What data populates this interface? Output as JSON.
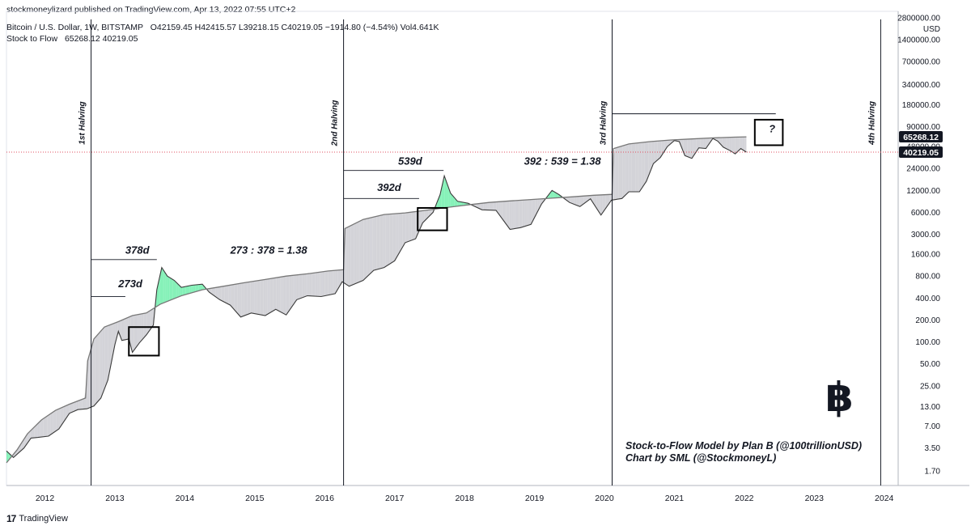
{
  "header": {
    "published": "stockmoneylizard published on TradingView.com, Apr 13, 2022 07:55 UTC+2",
    "symbol": "Bitcoin / U.S. Dollar, 1W, BITSTAMP",
    "ohlc": "O42159.45  H42415.57  L39218.15  C40219.05  −1914.80 (−4.54%)  Vol4.641K",
    "s2f_label": "Stock to Flow",
    "s2f_values": "65268.12  40219.05"
  },
  "footer": {
    "brand": "TradingView",
    "icon": "tradingview-logo-icon"
  },
  "credit": {
    "line1": "Stock-to-Flow Model by Plan B  (@100trillionUSD)",
    "line2": "Chart by SML (@StockmoneyL)"
  },
  "logo": {
    "glyph": "฿",
    "icon": "bitcoin-icon"
  },
  "chart_data": {
    "type": "line",
    "y_scale": "log",
    "y_ticks": [
      "2800000.00",
      "1400000.00",
      "700000.00",
      "340000.00",
      "180000.00",
      "90000.00",
      "48000.00",
      "24000.00",
      "12000.00",
      "6000.00",
      "3000.00",
      "1600.00",
      "800.00",
      "400.00",
      "200.00",
      "100.00",
      "50.00",
      "25.00",
      "13.00",
      "7.00",
      "3.50",
      "1.70"
    ],
    "y_unit": "USD",
    "x_ticks": [
      "2012",
      "2013",
      "2014",
      "2015",
      "2016",
      "2017",
      "2018",
      "2019",
      "2020",
      "2021",
      "2022",
      "2023",
      "2024"
    ],
    "price_label": "40219.05",
    "s2f_label": "65268.12",
    "series": [
      {
        "name": "Bitcoin / U.S. Dollar",
        "color": "#3a3a3a",
        "points": [
          [
            2011.7,
            3.2
          ],
          [
            2011.8,
            2.6
          ],
          [
            2011.95,
            3.5
          ],
          [
            2012.05,
            4.8
          ],
          [
            2012.15,
            4.9
          ],
          [
            2012.3,
            5.1
          ],
          [
            2012.45,
            6.4
          ],
          [
            2012.6,
            10.5
          ],
          [
            2012.72,
            11.8
          ],
          [
            2012.85,
            12.1
          ],
          [
            2012.95,
            13.2
          ],
          [
            2013.05,
            17
          ],
          [
            2013.15,
            30
          ],
          [
            2013.25,
            92
          ],
          [
            2013.3,
            140
          ],
          [
            2013.35,
            105
          ],
          [
            2013.45,
            110
          ],
          [
            2013.5,
            72
          ],
          [
            2013.6,
            97
          ],
          [
            2013.7,
            125
          ],
          [
            2013.8,
            170
          ],
          [
            2013.85,
            520
          ],
          [
            2013.92,
            1050
          ],
          [
            2014.0,
            800
          ],
          [
            2014.1,
            700
          ],
          [
            2014.2,
            560
          ],
          [
            2014.35,
            600
          ],
          [
            2014.5,
            620
          ],
          [
            2014.6,
            480
          ],
          [
            2014.75,
            380
          ],
          [
            2014.9,
            320
          ],
          [
            2015.05,
            220
          ],
          [
            2015.2,
            250
          ],
          [
            2015.4,
            230
          ],
          [
            2015.55,
            280
          ],
          [
            2015.7,
            235
          ],
          [
            2015.85,
            380
          ],
          [
            2016.0,
            430
          ],
          [
            2016.2,
            420
          ],
          [
            2016.4,
            460
          ],
          [
            2016.5,
            670
          ],
          [
            2016.6,
            580
          ],
          [
            2016.8,
            700
          ],
          [
            2016.95,
            960
          ],
          [
            2017.1,
            1050
          ],
          [
            2017.25,
            1300
          ],
          [
            2017.4,
            2300
          ],
          [
            2017.55,
            2600
          ],
          [
            2017.65,
            4300
          ],
          [
            2017.8,
            6000
          ],
          [
            2017.9,
            10500
          ],
          [
            2017.96,
            19000
          ],
          [
            2018.05,
            11000
          ],
          [
            2018.15,
            8500
          ],
          [
            2018.3,
            8000
          ],
          [
            2018.5,
            6500
          ],
          [
            2018.7,
            6400
          ],
          [
            2018.9,
            3500
          ],
          [
            2019.05,
            3700
          ],
          [
            2019.2,
            4100
          ],
          [
            2019.35,
            7800
          ],
          [
            2019.5,
            12000
          ],
          [
            2019.6,
            10500
          ],
          [
            2019.75,
            8200
          ],
          [
            2019.9,
            7200
          ],
          [
            2020.05,
            9200
          ],
          [
            2020.2,
            5500
          ],
          [
            2020.35,
            8800
          ],
          [
            2020.5,
            9300
          ],
          [
            2020.6,
            11500
          ],
          [
            2020.75,
            11500
          ],
          [
            2020.85,
            16000
          ],
          [
            2020.95,
            28000
          ],
          [
            2021.05,
            34000
          ],
          [
            2021.15,
            48000
          ],
          [
            2021.25,
            58000
          ],
          [
            2021.32,
            56000
          ],
          [
            2021.4,
            36000
          ],
          [
            2021.5,
            33000
          ],
          [
            2021.6,
            46000
          ],
          [
            2021.7,
            45000
          ],
          [
            2021.8,
            62000
          ],
          [
            2021.87,
            57000
          ],
          [
            2021.95,
            47000
          ],
          [
            2022.05,
            42000
          ],
          [
            2022.12,
            38000
          ],
          [
            2022.2,
            45000
          ],
          [
            2022.28,
            40219.05
          ]
        ]
      },
      {
        "name": "Stock to Flow",
        "color": "#777777",
        "points": [
          [
            2011.7,
            2.2
          ],
          [
            2011.85,
            3.3
          ],
          [
            2012.0,
            5.5
          ],
          [
            2012.2,
            8.5
          ],
          [
            2012.4,
            11.5
          ],
          [
            2012.6,
            14
          ],
          [
            2012.83,
            17
          ],
          [
            2012.86,
            55
          ],
          [
            2012.95,
            110
          ],
          [
            2013.1,
            160
          ],
          [
            2013.3,
            190
          ],
          [
            2013.5,
            230
          ],
          [
            2013.7,
            250
          ],
          [
            2013.9,
            330
          ],
          [
            2014.2,
            430
          ],
          [
            2014.5,
            520
          ],
          [
            2014.8,
            580
          ],
          [
            2015.1,
            650
          ],
          [
            2015.4,
            720
          ],
          [
            2015.7,
            800
          ],
          [
            2016.0,
            860
          ],
          [
            2016.3,
            940
          ],
          [
            2016.52,
            980
          ],
          [
            2016.54,
            3600
          ],
          [
            2016.8,
            4800
          ],
          [
            2017.1,
            5600
          ],
          [
            2017.4,
            5900
          ],
          [
            2017.7,
            6400
          ],
          [
            2018.0,
            7000
          ],
          [
            2018.3,
            7600
          ],
          [
            2018.6,
            8200
          ],
          [
            2018.9,
            8600
          ],
          [
            2019.2,
            9000
          ],
          [
            2019.5,
            9400
          ],
          [
            2019.8,
            9800
          ],
          [
            2020.1,
            10300
          ],
          [
            2020.36,
            10600
          ],
          [
            2020.38,
            45000
          ],
          [
            2020.6,
            52000
          ],
          [
            2020.9,
            56000
          ],
          [
            2021.2,
            59000
          ],
          [
            2021.5,
            61000
          ],
          [
            2021.8,
            63000
          ],
          [
            2022.1,
            64500
          ],
          [
            2022.28,
            65268.12
          ]
        ]
      }
    ],
    "halvings": [
      {
        "label": "1st Halving",
        "x": 2012.91
      },
      {
        "label": "2nd Halving",
        "x": 2016.52
      },
      {
        "label": "3rd Halving",
        "x": 2020.36
      },
      {
        "label": "4th Halving",
        "x": 2024.2
      }
    ],
    "annotations": {
      "labels": [
        {
          "text": "273d",
          "x": 2013.3,
          "y": 560
        },
        {
          "text": "378d",
          "x": 2013.4,
          "y": 1620
        },
        {
          "text": "273 : 378 = 1.38",
          "x": 2014.9,
          "y": 1620
        },
        {
          "text": "392d",
          "x": 2017.0,
          "y": 11800
        },
        {
          "text": "539d",
          "x": 2017.3,
          "y": 27000
        },
        {
          "text": "392 : 539 = 1.38",
          "x": 2019.1,
          "y": 27000
        },
        {
          "text": "?",
          "x": 2022.6,
          "y": 75000
        }
      ],
      "boxes": [
        {
          "x0": 2013.45,
          "x1": 2013.88,
          "y0": 65,
          "y1": 160
        },
        {
          "x0": 2017.58,
          "x1": 2018.0,
          "y0": 3400,
          "y1": 6900
        },
        {
          "x0": 2022.4,
          "x1": 2022.8,
          "y0": 50000,
          "y1": 112000
        }
      ],
      "hlines": [
        {
          "x0": 2012.91,
          "x1": 2013.85,
          "y": 1350
        },
        {
          "x0": 2012.91,
          "x1": 2013.4,
          "y": 420
        },
        {
          "x0": 2016.52,
          "x1": 2017.95,
          "y": 22500
        },
        {
          "x0": 2016.52,
          "x1": 2017.6,
          "y": 9300
        },
        {
          "x0": 2020.36,
          "x1": 2022.7,
          "y": 135000
        }
      ]
    },
    "colors": {
      "fill_above": "#7ef0b4",
      "fill_below": "#d1d1d6",
      "price_dotted": "#e04f5f",
      "label_bg": "#131722"
    }
  }
}
